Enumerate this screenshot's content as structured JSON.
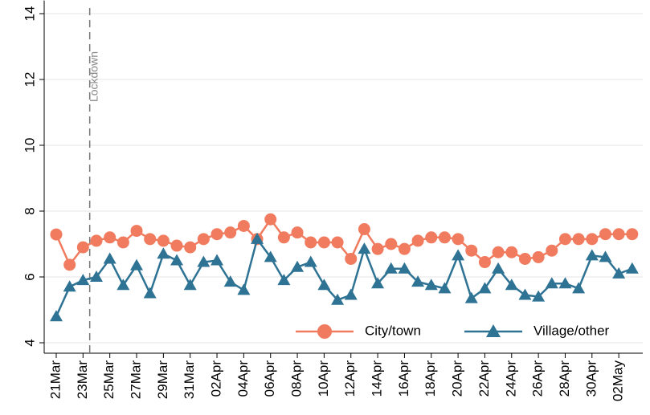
{
  "chart_data": {
    "type": "line",
    "categories": [
      "21Mar",
      null,
      "23Mar",
      null,
      "25Mar",
      null,
      "27Mar",
      null,
      "29Mar",
      null,
      "31Mar",
      null,
      "02Apr",
      null,
      "04Apr",
      null,
      "06Apr",
      null,
      "08Apr",
      null,
      "10Apr",
      null,
      "12Apr",
      null,
      "14Apr",
      null,
      "16Apr",
      null,
      "18Apr",
      null,
      "20Apr",
      null,
      "22Apr",
      null,
      "24Apr",
      null,
      "26Apr",
      null,
      "28Apr",
      null,
      "30Apr",
      null,
      "02May",
      null
    ],
    "series": [
      {
        "name": "City/town",
        "color": "#f07b5f",
        "marker": "circle",
        "values": [
          7.29,
          6.37,
          6.9,
          7.1,
          7.2,
          7.05,
          7.4,
          7.15,
          7.1,
          6.95,
          6.9,
          7.15,
          7.3,
          7.35,
          7.55,
          7.15,
          7.75,
          7.2,
          7.35,
          7.05,
          7.05,
          7.05,
          6.55,
          7.45,
          6.85,
          7.0,
          6.85,
          7.1,
          7.2,
          7.2,
          7.15,
          6.8,
          6.45,
          6.75,
          6.75,
          6.55,
          6.6,
          6.8,
          7.15,
          7.15,
          7.15,
          7.3,
          7.3,
          7.3
        ]
      },
      {
        "name": "Village/other",
        "color": "#2e7294",
        "marker": "triangle",
        "values": [
          4.8,
          5.7,
          5.9,
          6.0,
          6.55,
          5.75,
          6.35,
          5.5,
          6.7,
          6.5,
          5.75,
          6.45,
          6.5,
          5.85,
          5.6,
          7.15,
          6.6,
          5.9,
          6.3,
          6.45,
          5.75,
          5.3,
          5.45,
          6.85,
          5.8,
          6.25,
          6.25,
          5.85,
          5.75,
          5.65,
          6.65,
          5.35,
          5.65,
          6.25,
          5.75,
          5.45,
          5.4,
          5.8,
          5.8,
          5.65,
          6.65,
          6.6,
          6.1,
          6.25
        ]
      }
    ],
    "ylim": [
      4,
      14.4
    ],
    "yticks": [
      4,
      6,
      8,
      10,
      12,
      14
    ],
    "grid": true,
    "annotation": {
      "text": "Lockdown",
      "at": "23Mar"
    },
    "legend": "bottom-right"
  }
}
